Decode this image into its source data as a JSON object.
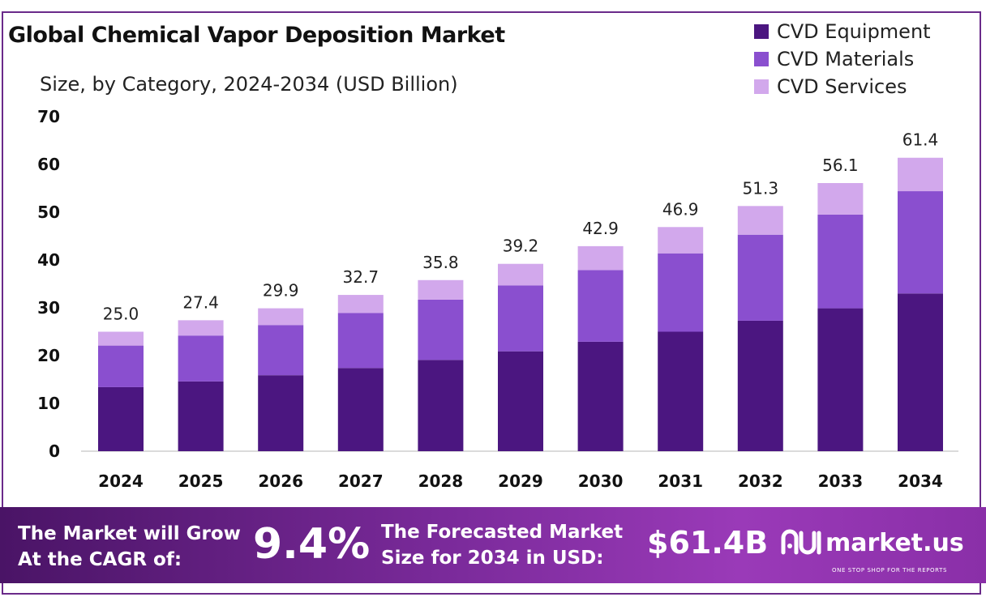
{
  "title": "Global Chemical Vapor Deposition Market",
  "subtitle": "Size, by Category, 2024-2034 (USD Billion)",
  "legend": [
    {
      "label": "CVD Equipment",
      "color": "#4b1680"
    },
    {
      "label": "CVD Materials",
      "color": "#8a4fcf"
    },
    {
      "label": "CVD Services",
      "color": "#d2a8ec"
    }
  ],
  "chart_data": {
    "type": "bar",
    "stacked": true,
    "title": "Global Chemical Vapor Deposition Market",
    "subtitle": "Size, by Category, 2024-2034 (USD Billion)",
    "categories": [
      "2024",
      "2025",
      "2026",
      "2027",
      "2028",
      "2029",
      "2030",
      "2031",
      "2032",
      "2033",
      "2034"
    ],
    "series": [
      {
        "name": "CVD Equipment",
        "values": [
          13.4,
          14.6,
          15.9,
          17.4,
          19.1,
          20.9,
          22.9,
          25.0,
          27.3,
          29.9,
          33.0
        ]
      },
      {
        "name": "CVD Materials",
        "values": [
          8.7,
          9.6,
          10.5,
          11.5,
          12.6,
          13.8,
          15.0,
          16.4,
          18.0,
          19.6,
          21.4
        ]
      },
      {
        "name": "CVD Services",
        "values": [
          2.9,
          3.2,
          3.5,
          3.8,
          4.1,
          4.5,
          5.0,
          5.5,
          6.0,
          6.6,
          7.0
        ]
      }
    ],
    "totals": [
      "25.0",
      "27.4",
      "29.9",
      "32.7",
      "35.8",
      "39.2",
      "42.9",
      "46.9",
      "51.3",
      "56.1",
      "61.4"
    ],
    "yticks": [
      0,
      10,
      20,
      30,
      40,
      50,
      60,
      70
    ],
    "ylim": [
      0,
      70
    ],
    "xlabel": "",
    "ylabel": "",
    "grid": false,
    "legend_position": "top-right"
  },
  "banner": {
    "cagr_label": "The Market will Grow At the CAGR of:",
    "cagr_value": "9.4%",
    "forecast_label": "The Forecasted Market Size for 2034 in USD:",
    "forecast_value": "$61.4B",
    "brand_name": "market.us",
    "brand_tagline": "ONE STOP SHOP FOR THE REPORTS"
  }
}
